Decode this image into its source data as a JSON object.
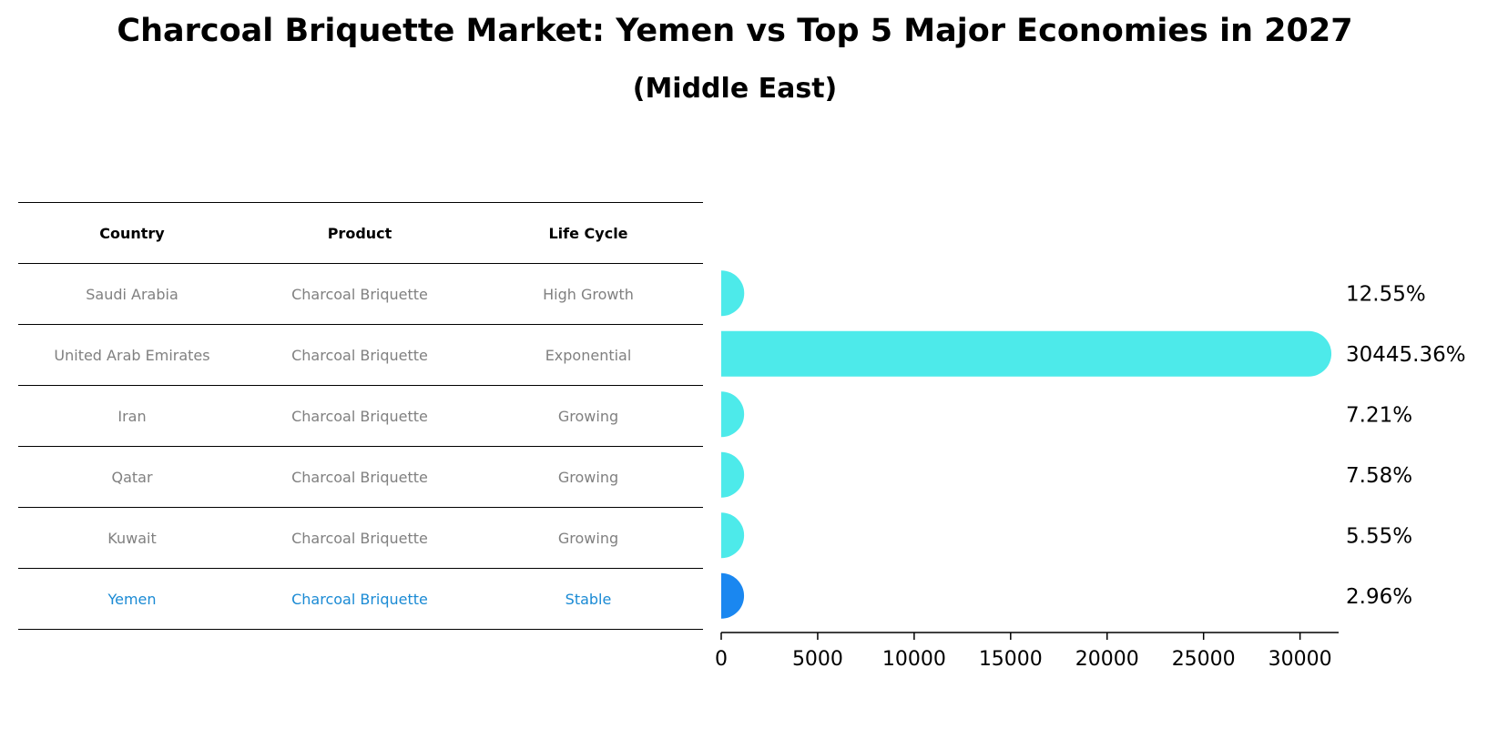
{
  "title": "Charcoal Briquette Market: Yemen vs Top 5 Major Economies in 2027",
  "subtitle": "(Middle East)",
  "table": {
    "headers": [
      "Country",
      "Product",
      "Life Cycle"
    ],
    "rows": [
      [
        "Saudi Arabia",
        "Charcoal Briquette",
        "High Growth"
      ],
      [
        "United Arab Emirates",
        "Charcoal Briquette",
        "Exponential"
      ],
      [
        "Iran",
        "Charcoal Briquette",
        "Growing"
      ],
      [
        "Qatar",
        "Charcoal Briquette",
        "Growing"
      ],
      [
        "Kuwait",
        "Charcoal Briquette",
        "Growing"
      ],
      [
        "Yemen",
        "Charcoal Briquette",
        "Stable"
      ]
    ],
    "highlight_color": "#1a8ad4"
  },
  "chart_data": {
    "type": "bar",
    "orientation": "horizontal",
    "categories": [
      "Saudi Arabia",
      "United Arab Emirates",
      "Iran",
      "Qatar",
      "Kuwait",
      "Yemen"
    ],
    "values": [
      12.55,
      30445.36,
      7.21,
      7.58,
      5.55,
      2.96
    ],
    "value_labels": [
      "12.55%",
      "30445.36%",
      "7.21%",
      "7.58%",
      "5.55%",
      "2.96%"
    ],
    "colors": [
      "#4deaea",
      "#4deaea",
      "#4deaea",
      "#4deaea",
      "#4deaea",
      "#1a87f0"
    ],
    "xlim": [
      0,
      32000
    ],
    "xticks": [
      0,
      5000,
      10000,
      15000,
      20000,
      25000,
      30000
    ],
    "grid": false,
    "xlabel": "",
    "ylabel": ""
  }
}
